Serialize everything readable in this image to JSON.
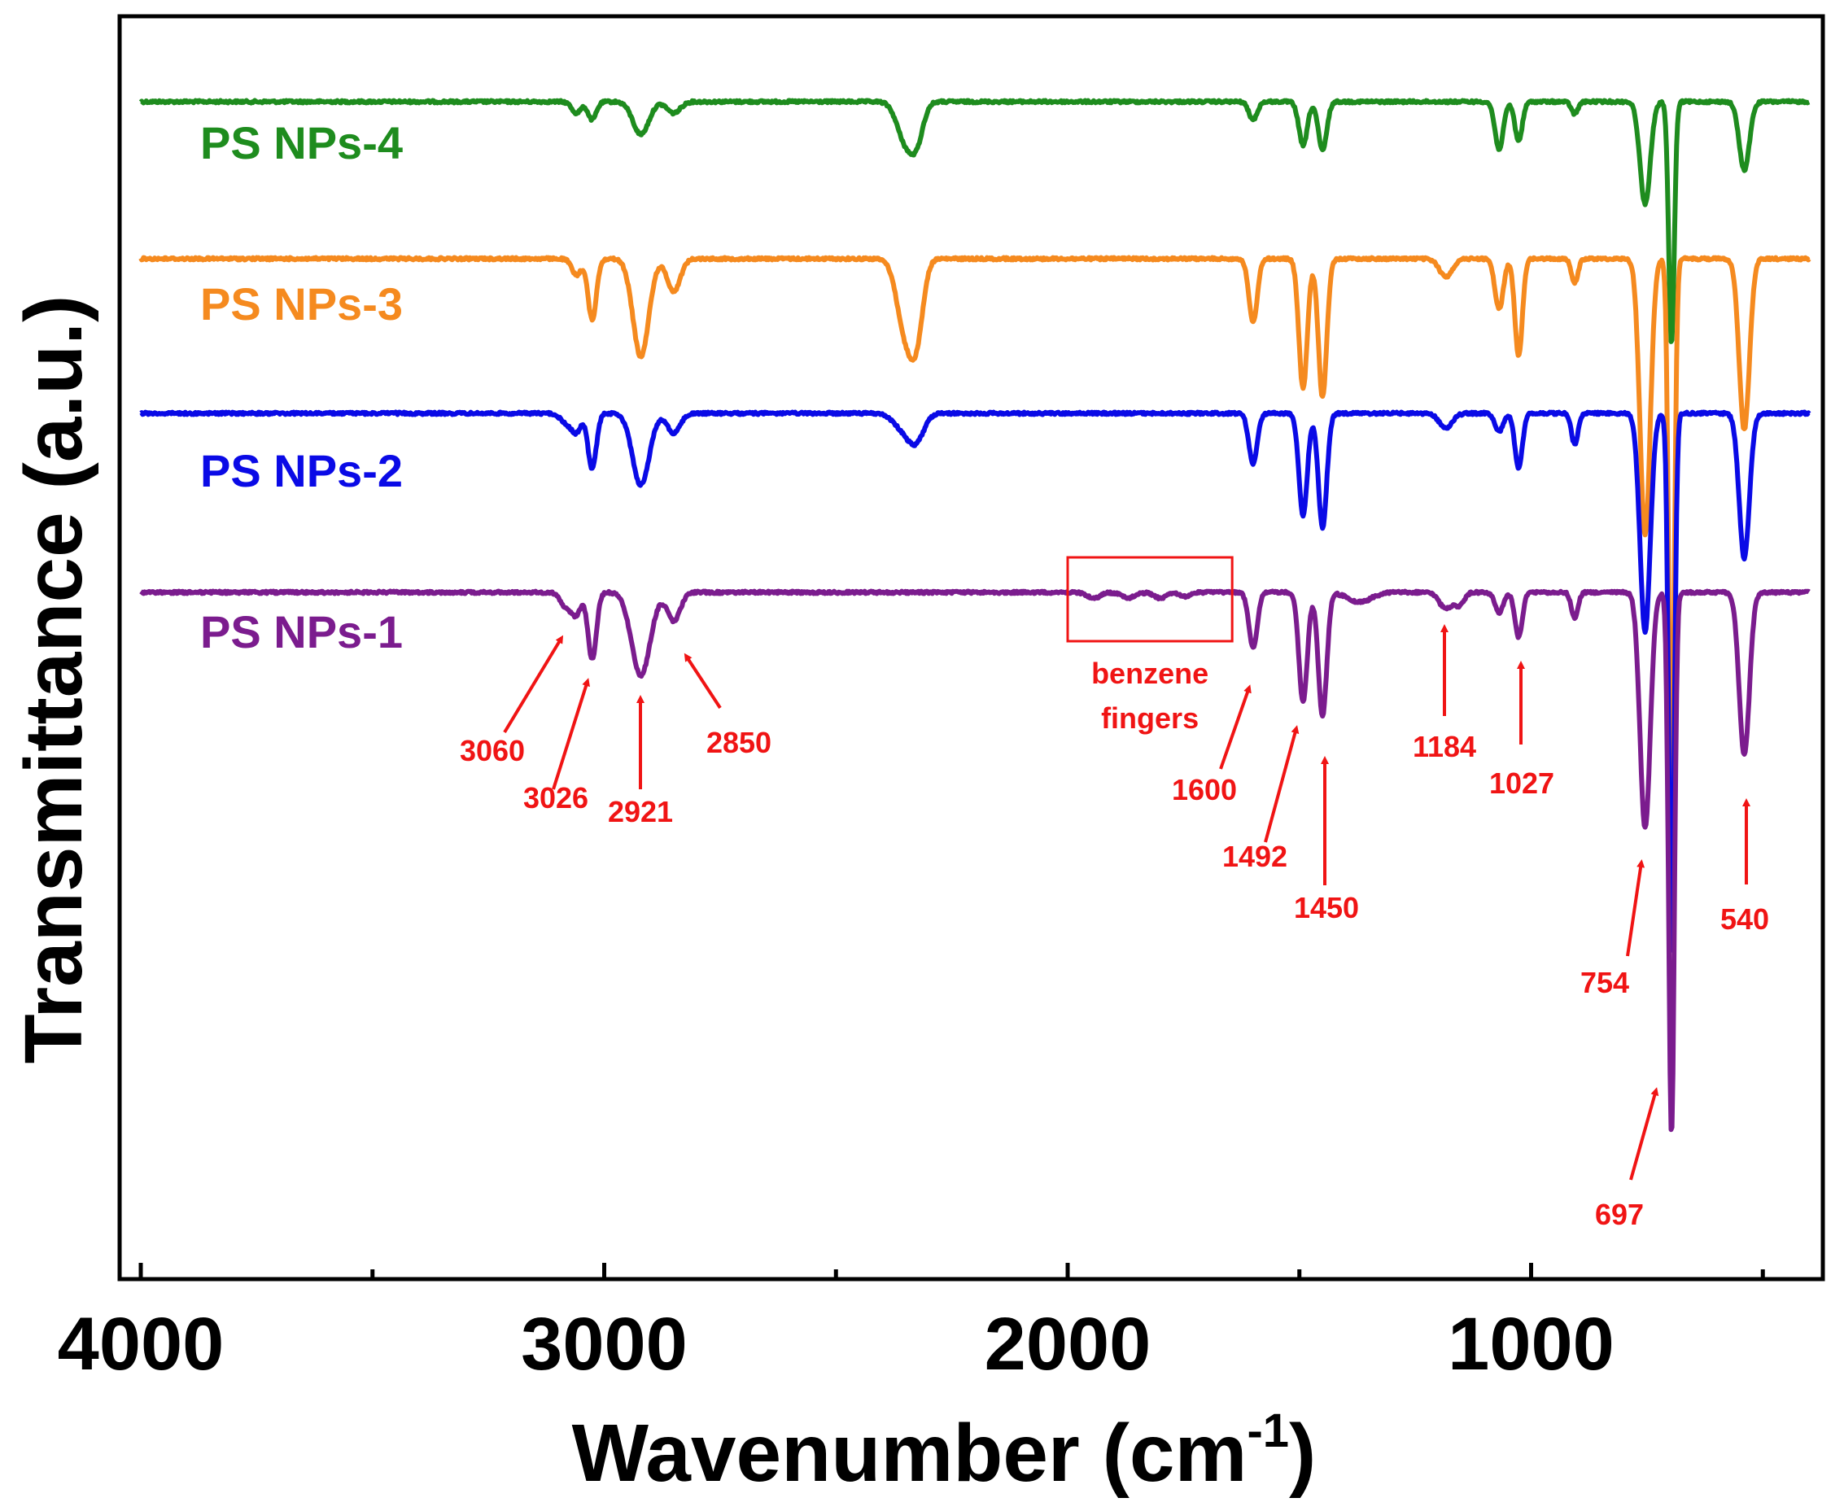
{
  "chart_data": {
    "type": "line",
    "title": "",
    "xlabel_main": "Wavenumber (cm",
    "xlabel_sup": "-1",
    "xlabel_close": ")",
    "ylabel": "Transmittance (a.u.)",
    "xlim": [
      4000,
      400
    ],
    "x_reversed": true,
    "x_ticks": [
      "4000",
      "3000",
      "2000",
      "1000"
    ],
    "y_ticks": [],
    "grid": false,
    "legend": "inline labels",
    "colors": {
      "ps1": "#7B1C8E",
      "ps2": "#0A0AE6",
      "ps3": "#F58A1F",
      "ps4": "#1E8C1E",
      "annotation": "#F01414"
    },
    "series": [
      {
        "name": "PS NPs-1",
        "color": "#7B1C8E",
        "baseline": 0,
        "peaks": [
          [
            3082,
            18,
            12
          ],
          [
            3060,
            25,
            10
          ],
          [
            3026,
            82,
            9
          ],
          [
            2921,
            102,
            20
          ],
          [
            2850,
            35,
            14
          ],
          [
            1600,
            68,
            9
          ],
          [
            1492,
            135,
            9
          ],
          [
            1450,
            152,
            9
          ],
          [
            1370,
            12,
            25
          ],
          [
            1184,
            20,
            14
          ],
          [
            1154,
            15,
            10
          ],
          [
            1069,
            25,
            9
          ],
          [
            1027,
            55,
            8
          ],
          [
            906,
            32,
            7
          ],
          [
            754,
            290,
            11
          ],
          [
            697,
            668,
            6
          ],
          [
            540,
            200,
            11
          ]
        ],
        "fingers": [
          [
            1944,
            7,
            14
          ],
          [
            1870,
            7,
            14
          ],
          [
            1800,
            7,
            14
          ],
          [
            1745,
            5,
            12
          ]
        ]
      },
      {
        "name": "PS NPs-2",
        "color": "#0A0AE6",
        "baseline": 0,
        "peaks": [
          [
            3082,
            12,
            12
          ],
          [
            3060,
            22,
            10
          ],
          [
            3026,
            68,
            9
          ],
          [
            2921,
            88,
            18
          ],
          [
            2850,
            24,
            14
          ],
          [
            2350,
            22,
            22
          ],
          [
            2325,
            25,
            16
          ],
          [
            1600,
            62,
            9
          ],
          [
            1492,
            125,
            9
          ],
          [
            1450,
            140,
            9
          ],
          [
            1184,
            18,
            14
          ],
          [
            1069,
            22,
            9
          ],
          [
            1027,
            68,
            8
          ],
          [
            906,
            38,
            7
          ],
          [
            754,
            268,
            11
          ],
          [
            697,
            668,
            6
          ],
          [
            540,
            178,
            11
          ]
        ],
        "fingers": []
      },
      {
        "name": "PS NPs-3",
        "color": "#F58A1F",
        "baseline": 0,
        "peaks": [
          [
            3060,
            20,
            10
          ],
          [
            3026,
            75,
            9
          ],
          [
            2921,
            120,
            17
          ],
          [
            2850,
            40,
            14
          ],
          [
            2350,
            90,
            18
          ],
          [
            2325,
            78,
            14
          ],
          [
            1600,
            78,
            9
          ],
          [
            1492,
            160,
            9
          ],
          [
            1450,
            170,
            9
          ],
          [
            1184,
            22,
            14
          ],
          [
            1069,
            62,
            9
          ],
          [
            1027,
            120,
            8
          ],
          [
            906,
            30,
            7
          ],
          [
            754,
            340,
            11
          ],
          [
            697,
            668,
            6
          ],
          [
            540,
            210,
            11
          ]
        ],
        "fingers": []
      },
      {
        "name": "PS NPs-4",
        "color": "#1E8C1E",
        "baseline": 0,
        "peaks": [
          [
            3060,
            14,
            10
          ],
          [
            3026,
            22,
            9
          ],
          [
            2921,
            40,
            17
          ],
          [
            2850,
            14,
            14
          ],
          [
            2350,
            48,
            18
          ],
          [
            2325,
            40,
            14
          ],
          [
            1600,
            22,
            9
          ],
          [
            1492,
            54,
            9
          ],
          [
            1450,
            60,
            9
          ],
          [
            1069,
            58,
            9
          ],
          [
            1027,
            48,
            8
          ],
          [
            906,
            15,
            7
          ],
          [
            754,
            126,
            11
          ],
          [
            697,
            298,
            6
          ],
          [
            540,
            84,
            11
          ]
        ],
        "fingers": []
      }
    ],
    "annotations": [
      {
        "label": "3060",
        "wavenumber": 3060
      },
      {
        "label": "3026",
        "wavenumber": 3026
      },
      {
        "label": "2921",
        "wavenumber": 2921
      },
      {
        "label": "2850",
        "wavenumber": 2850
      },
      {
        "label": "1600",
        "wavenumber": 1600
      },
      {
        "label": "1492",
        "wavenumber": 1492
      },
      {
        "label": "1450",
        "wavenumber": 1450
      },
      {
        "label": "1184",
        "wavenumber": 1184
      },
      {
        "label": "1027",
        "wavenumber": 1027
      },
      {
        "label": "754",
        "wavenumber": 754
      },
      {
        "label": "697",
        "wavenumber": 697
      },
      {
        "label": "540",
        "wavenumber": 540
      }
    ],
    "box_annotation": {
      "line1": "benzene",
      "line2": "fingers",
      "wavenumber_range": [
        2000,
        1645
      ]
    }
  }
}
